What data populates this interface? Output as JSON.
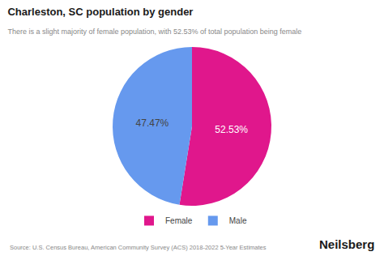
{
  "chart_data": {
    "type": "pie",
    "title": "Charleston, SC population by gender",
    "subtitle": "There is a slight majority of female population, with 52.53% of total population being female",
    "categories": [
      "Female",
      "Male"
    ],
    "values": [
      52.53,
      47.47
    ],
    "value_labels": [
      "52.53%",
      "47.47%"
    ],
    "data_labels": true,
    "colors": [
      "#E0178C",
      "#6699EE"
    ],
    "legend": "bottom",
    "annotations": [
      "Source: U.S. Census Bureau, American Community Survey (ACS) 2018-2022 5-Year Estimates",
      "Neilsberg"
    ]
  }
}
